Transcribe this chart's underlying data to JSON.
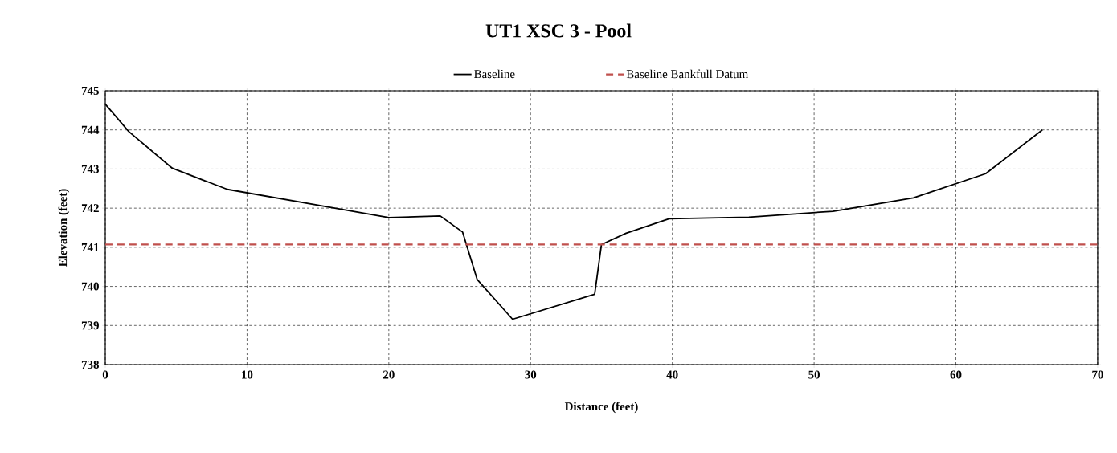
{
  "chart_data": {
    "type": "line",
    "title": "UT1 XSC 3 - Pool",
    "xlabel": "Distance (feet)",
    "ylabel": "Elevation (feet)",
    "series": [
      {
        "name": "Baseline",
        "color": "#000000",
        "line_style": "solid",
        "x": [
          0,
          1.65,
          4.73,
          8.61,
          20.0,
          23.63,
          25.2,
          26.23,
          28.73,
          34.52,
          35.0,
          36.74,
          39.77,
          45.4,
          51.33,
          57.0,
          62.1,
          66.1
        ],
        "values": [
          744.66,
          743.96,
          743.02,
          742.48,
          741.76,
          741.8,
          741.39,
          740.18,
          739.16,
          739.8,
          741.07,
          741.36,
          741.73,
          741.77,
          741.92,
          742.26,
          742.88,
          744.0
        ]
      },
      {
        "name": "Baseline Bankfull Datum",
        "color": "#c0504d",
        "line_style": "dashed",
        "x": [
          0,
          70
        ],
        "values": [
          741.07,
          741.07
        ]
      }
    ],
    "xlim": [
      0,
      70
    ],
    "ylim": [
      738,
      745
    ],
    "xticks": [
      0,
      10,
      20,
      30,
      40,
      50,
      60,
      70
    ],
    "yticks": [
      738,
      739,
      740,
      741,
      742,
      743,
      744,
      745
    ],
    "grid": true,
    "legend": "top",
    "marker": "none"
  }
}
